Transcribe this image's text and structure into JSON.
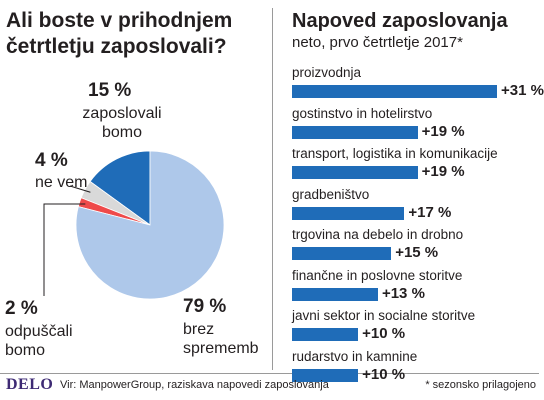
{
  "left_panel": {
    "title": "Ali boste v prihodnjem četrtletju zaposlovali?"
  },
  "right_panel": {
    "title": "Napoved zaposlovanja",
    "subtitle": "neto, prvo četrtletje 2017*"
  },
  "footer": {
    "logo": "DELO",
    "source": "Vir: ManpowerGroup, raziskava napovedi zaposlovanja",
    "note": "* sezonsko prilagojeno"
  },
  "chart_data": [
    {
      "type": "pie",
      "title": "Ali boste v prihodnjem četrtletju zaposlovali?",
      "slices": [
        {
          "label": "zaposlovali bomo",
          "value": 15,
          "value_label": "15 %",
          "color": "#1f6cb8"
        },
        {
          "label": "ne vem",
          "value": 4,
          "value_label": "4 %",
          "color": "#d9d9d9"
        },
        {
          "label": "odpuščali bomo",
          "value": 2,
          "value_label": "2 %",
          "color": "#ef4a4a"
        },
        {
          "label": "brez sprememb",
          "value": 79,
          "value_label": "79 %",
          "color": "#aec8ea"
        }
      ]
    },
    {
      "type": "bar",
      "orientation": "horizontal",
      "title": "Napoved zaposlovanja",
      "subtitle": "neto, prvo četrtletje 2017*",
      "bar_color": "#1f6cb8",
      "categories": [
        "proizvodnja",
        "gostinstvo in hotelirstvo",
        "transport, logistika in komunikacije",
        "gradbeništvo",
        "trgovina na debelo in drobno",
        "finančne in poslovne storitve",
        "javni sektor in socialne storitve",
        "rudarstvo in kamnine"
      ],
      "values": [
        31,
        19,
        19,
        17,
        15,
        13,
        10,
        10
      ],
      "value_labels": [
        "+31 %",
        "+19 %",
        "+19 %",
        "+17 %",
        "+15 %",
        "+13 %",
        "+10 %",
        "+10 %"
      ]
    }
  ]
}
